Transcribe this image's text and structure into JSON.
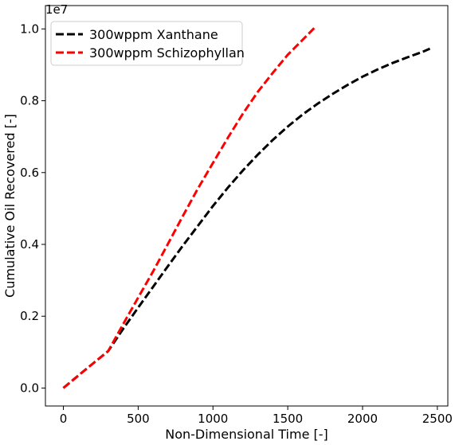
{
  "chart_data": {
    "type": "line",
    "xlabel": "Non-Dimensional Time [-]",
    "ylabel": "Cumulative Oil Recovered [-]",
    "offset_label": "1e7",
    "xlim": [
      -120,
      2570
    ],
    "ylim": [
      -0.05,
      1.065
    ],
    "y_scale_factor": 10000000,
    "xticks": [
      0,
      500,
      1000,
      1500,
      2000,
      2500
    ],
    "xtick_labels": [
      "0",
      "500",
      "1000",
      "1500",
      "2000",
      "2500"
    ],
    "yticks": [
      0.0,
      0.2,
      0.4,
      0.6,
      0.8,
      1.0
    ],
    "ytick_labels": [
      "0.0",
      "0.2",
      "0.4",
      "0.6",
      "0.8",
      "1.0"
    ],
    "grid": false,
    "legend_position": "upper-left",
    "series": [
      {
        "name": "300wppm Xanthane",
        "color": "#000000",
        "x": [
          0,
          150,
          300,
          400,
          500,
          600,
          700,
          800,
          900,
          1000,
          1100,
          1200,
          1300,
          1400,
          1500,
          1600,
          1700,
          1800,
          1900,
          2000,
          2100,
          2200,
          2300,
          2400,
          2450
        ],
        "y": [
          0.0,
          0.052,
          0.103,
          0.165,
          0.224,
          0.282,
          0.34,
          0.397,
          0.452,
          0.507,
          0.558,
          0.606,
          0.65,
          0.691,
          0.728,
          0.762,
          0.792,
          0.819,
          0.844,
          0.867,
          0.887,
          0.905,
          0.921,
          0.936,
          0.945
        ]
      },
      {
        "name": "300wppm Schizophyllan",
        "color": "#ff0000",
        "x": [
          0,
          150,
          300,
          400,
          500,
          600,
          700,
          800,
          900,
          1000,
          1100,
          1200,
          1300,
          1400,
          1500,
          1600,
          1690
        ],
        "y": [
          0.0,
          0.052,
          0.103,
          0.178,
          0.252,
          0.325,
          0.402,
          0.48,
          0.556,
          0.627,
          0.697,
          0.764,
          0.825,
          0.878,
          0.928,
          0.97,
          1.008
        ]
      }
    ]
  }
}
